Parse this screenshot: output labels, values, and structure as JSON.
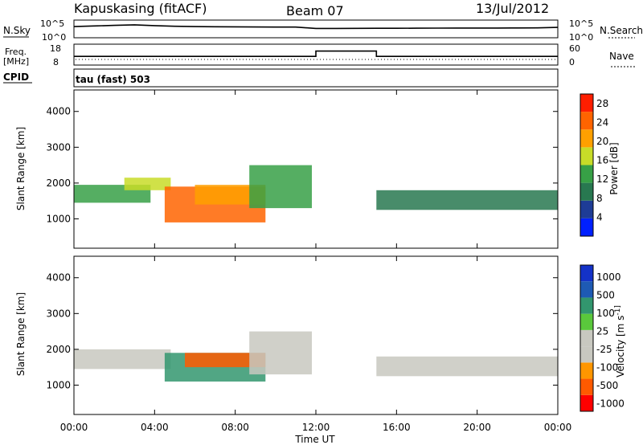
{
  "header": {
    "station": "Kapuskasing (fitACF)",
    "beam": "Beam 07",
    "date": "13/Jul/2012"
  },
  "panel_labels": {
    "nsky": "N.Sky",
    "nsearch": "N.Search",
    "freq": "Freq.",
    "freq_unit": "[MHz]",
    "nave": "Nave",
    "cpid": "CPID",
    "cpid_value": "tau (fast) 503"
  },
  "noise_panel": {
    "left_ticks": [
      "10^5",
      "10^0"
    ],
    "right_ticks": [
      "10^5",
      "10^0"
    ]
  },
  "freq_panel": {
    "left_ticks": [
      "18",
      "8"
    ],
    "right_ticks": [
      "60",
      "0"
    ]
  },
  "colors": {
    "power_scale": [
      "#0020ff",
      "#1e3c96",
      "#287850",
      "#37a046",
      "#c8dc28",
      "#ffa000",
      "#ff6400",
      "#ff1e00"
    ],
    "velocity_scale": [
      "#ff0000",
      "#ff5a00",
      "#ff9600",
      "#c8c8c0",
      "#c8c8c0",
      "#5ac83c",
      "#32966e",
      "#1e5ab4",
      "#1432c8"
    ]
  },
  "chart_data": [
    {
      "type": "line",
      "title": "",
      "xlabel": "",
      "ylabel": "N.Sky",
      "y_scale": "log",
      "ylim": [
        "10^0",
        "10^5"
      ],
      "x": [
        "00:00",
        "01:00",
        "02:00",
        "03:00",
        "04:00",
        "05:00",
        "06:00",
        "07:00",
        "08:00",
        "09:00",
        "10:00",
        "11:00",
        "12:00",
        "13:00",
        "14:00",
        "15:00",
        "16:00",
        "17:00",
        "18:00",
        "19:00",
        "20:00",
        "21:00",
        "22:00",
        "23:00",
        "24:00"
      ],
      "series": [
        {
          "name": "N.Sky",
          "values": [
            2500,
            4500,
            7500,
            12000,
            6000,
            3500,
            2600,
            2200,
            2000,
            1800,
            1700,
            1600,
            500,
            500,
            520,
            550,
            580,
            600,
            650,
            680,
            700,
            720,
            760,
            800,
            1200
          ]
        }
      ]
    },
    {
      "type": "line",
      "title": "",
      "xlabel": "",
      "ylabel": "Freq. [MHz]",
      "ylim": [
        8,
        18
      ],
      "x": [
        "00:00",
        "12:00",
        "12:00",
        "15:00",
        "15:00",
        "24:00"
      ],
      "series": [
        {
          "name": "Freq.",
          "values": [
            12,
            12,
            15,
            15,
            12,
            12
          ]
        }
      ]
    },
    {
      "type": "heatmap",
      "title": "",
      "xlabel": "",
      "ylabel": "Slant Range [km]",
      "x_ticks": [
        "00:00",
        "04:00",
        "08:00",
        "12:00",
        "16:00",
        "20:00",
        "00:00"
      ],
      "y_ticks": [
        1000,
        2000,
        3000,
        4000
      ],
      "ylim": [
        180,
        4600
      ],
      "colorbar": {
        "label": "Power [dB]",
        "ticks": [
          4,
          8,
          12,
          16,
          20,
          24,
          28
        ],
        "range": [
          0,
          30
        ]
      },
      "regions": [
        {
          "t": [
            0.0,
            3.8
          ],
          "range_km": [
            1450,
            1950
          ],
          "level_db": 14
        },
        {
          "t": [
            2.5,
            4.8
          ],
          "range_km": [
            1800,
            2150
          ],
          "level_db": 18
        },
        {
          "t": [
            4.5,
            9.5
          ],
          "range_km": [
            900,
            1900
          ],
          "level_db": 26
        },
        {
          "t": [
            6.0,
            9.5
          ],
          "range_km": [
            1400,
            1950
          ],
          "level_db": 20
        },
        {
          "t": [
            8.7,
            11.8
          ],
          "range_km": [
            1300,
            2500
          ],
          "level_db": 12
        },
        {
          "t": [
            15.0,
            24.0
          ],
          "range_km": [
            1250,
            1800
          ],
          "level_db": 10
        }
      ]
    },
    {
      "type": "heatmap",
      "title": "",
      "xlabel": "Time UT",
      "ylabel": "Slant Range [km]",
      "x_ticks": [
        "00:00",
        "04:00",
        "08:00",
        "12:00",
        "16:00",
        "20:00",
        "00:00"
      ],
      "y_ticks": [
        1000,
        2000,
        3000,
        4000
      ],
      "ylim": [
        180,
        4600
      ],
      "colorbar": {
        "label": "Velocity [m s^-1]",
        "ticks": [
          1000,
          500,
          100,
          25,
          -25,
          -100,
          -500,
          -1000
        ]
      },
      "regions": [
        {
          "t": [
            0.0,
            4.8
          ],
          "range_km": [
            1450,
            2000
          ],
          "velocity": 0
        },
        {
          "t": [
            4.5,
            9.5
          ],
          "range_km": [
            1100,
            1900
          ],
          "velocity": 150
        },
        {
          "t": [
            5.5,
            9.5
          ],
          "range_km": [
            1500,
            1900
          ],
          "velocity": -300
        },
        {
          "t": [
            8.7,
            11.8
          ],
          "range_km": [
            1300,
            2500
          ],
          "velocity": 0
        },
        {
          "t": [
            15.0,
            24.0
          ],
          "range_km": [
            1250,
            1800
          ],
          "velocity": 0
        }
      ]
    }
  ]
}
